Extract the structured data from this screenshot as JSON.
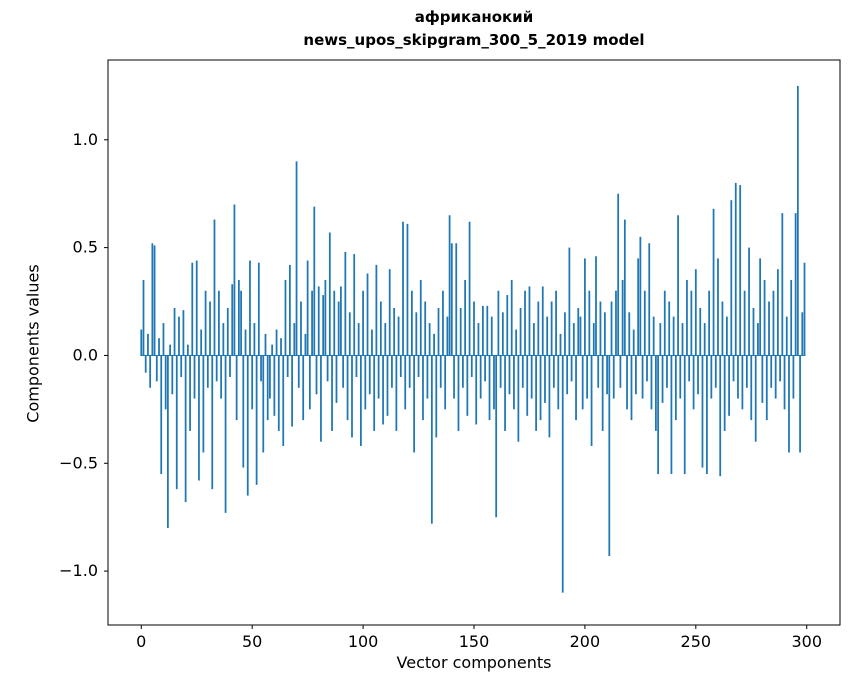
{
  "figure": {
    "title_line1": "африканокий",
    "title_line2": "news_upos_skipgram_300_5_2019 model",
    "xlabel": "Vector components",
    "ylabel": "Components values",
    "bar_color": "#1f77b4",
    "background": "#ffffff",
    "axis_color": "#000000"
  },
  "chart_data": {
    "type": "bar",
    "title": "африканокий — news_upos_skipgram_300_5_2019 model",
    "xlabel": "Vector components",
    "ylabel": "Components values",
    "legend": null,
    "grid": false,
    "xlim": [
      -15,
      315
    ],
    "ylim": [
      -1.25,
      1.37
    ],
    "xticks": [
      0,
      50,
      100,
      150,
      200,
      250,
      300
    ],
    "xtick_labels": [
      "0",
      "50",
      "100",
      "150",
      "200",
      "250",
      "300"
    ],
    "yticks": [
      -1.0,
      -0.5,
      0.0,
      0.5,
      1.0
    ],
    "ytick_labels": [
      "−1.0",
      "−0.5",
      "0.0",
      "0.5",
      "1.0"
    ],
    "x_start": 0,
    "bar_width_units": 0.8,
    "values": [
      0.12,
      0.35,
      -0.08,
      0.1,
      -0.15,
      0.52,
      0.51,
      -0.12,
      0.08,
      -0.55,
      0.15,
      -0.25,
      -0.8,
      0.05,
      -0.18,
      0.22,
      -0.62,
      0.18,
      -0.1,
      0.21,
      -0.68,
      0.05,
      -0.35,
      0.43,
      -0.2,
      0.44,
      -0.58,
      0.12,
      -0.45,
      0.3,
      -0.15,
      0.25,
      -0.62,
      0.63,
      -0.12,
      0.3,
      -0.2,
      0.15,
      -0.73,
      0.22,
      -0.1,
      0.33,
      0.7,
      -0.3,
      0.35,
      0.3,
      -0.52,
      0.12,
      -0.65,
      0.44,
      -0.25,
      0.15,
      -0.6,
      0.43,
      -0.12,
      -0.45,
      0.1,
      -0.3,
      -0.2,
      0.05,
      -0.28,
      0.12,
      -0.35,
      0.08,
      -0.42,
      0.35,
      -0.1,
      0.42,
      -0.33,
      0.15,
      0.9,
      -0.15,
      0.25,
      -0.3,
      0.1,
      0.44,
      -0.25,
      0.3,
      0.69,
      -0.18,
      0.32,
      -0.4,
      0.28,
      0.35,
      -0.12,
      0.57,
      -0.35,
      0.3,
      -0.22,
      0.25,
      0.32,
      -0.15,
      0.48,
      -0.3,
      0.2,
      -0.38,
      0.47,
      -0.1,
      0.15,
      -0.42,
      0.3,
      -0.25,
      0.38,
      -0.18,
      0.12,
      -0.35,
      0.42,
      -0.2,
      0.25,
      -0.32,
      0.15,
      -0.28,
      0.4,
      -0.15,
      0.22,
      -0.35,
      0.18,
      -0.1,
      0.62,
      -0.25,
      0.61,
      -0.15,
      0.3,
      -0.45,
      0.2,
      -0.1,
      0.35,
      -0.3,
      0.25,
      -0.2,
      0.15,
      -0.78,
      0.1,
      -0.38,
      0.22,
      -0.15,
      0.3,
      -0.25,
      0.18,
      0.65,
      0.52,
      -0.2,
      0.52,
      -0.35,
      0.22,
      -0.15,
      0.35,
      -0.28,
      0.62,
      -0.1,
      0.25,
      -0.32,
      0.15,
      -0.2,
      0.23,
      -0.12,
      0.23,
      -0.3,
      0.18,
      -0.25,
      -0.75,
      0.3,
      -0.15,
      0.2,
      -0.35,
      0.28,
      -0.18,
      0.35,
      -0.25,
      0.12,
      -0.4,
      0.22,
      -0.15,
      0.3,
      -0.28,
      0.32,
      -0.2,
      0.15,
      -0.35,
      0.25,
      -0.3,
      0.32,
      -0.22,
      0.18,
      -0.38,
      0.25,
      -0.15,
      0.3,
      -0.25,
      0.1,
      -1.1,
      0.2,
      -0.18,
      0.5,
      -0.12,
      0.15,
      -0.3,
      0.22,
      0.18,
      -0.25,
      0.45,
      -0.2,
      0.3,
      -0.42,
      0.15,
      0.46,
      -0.15,
      0.25,
      -0.35,
      0.2,
      -0.18,
      -0.93,
      0.25,
      -0.2,
      0.3,
      0.75,
      -0.15,
      0.35,
      0.63,
      -0.25,
      0.2,
      -0.3,
      0.12,
      -0.18,
      0.45,
      0.55,
      -0.2,
      0.3,
      -0.12,
      0.52,
      -0.25,
      0.18,
      -0.35,
      -0.55,
      0.15,
      -0.22,
      0.3,
      -0.15,
      0.25,
      -0.55,
      0.18,
      -0.3,
      0.65,
      -0.2,
      0.15,
      -0.55,
      0.35,
      -0.12,
      0.3,
      -0.25,
      0.4,
      -0.18,
      0.22,
      -0.52,
      0.15,
      -0.55,
      0.3,
      -0.2,
      0.68,
      -0.15,
      0.45,
      -0.56,
      0.25,
      -0.35,
      0.18,
      -0.28,
      0.72,
      -0.12,
      0.8,
      -0.2,
      0.79,
      -0.25,
      0.3,
      -0.15,
      0.5,
      -0.3,
      0.22,
      -0.4,
      0.15,
      0.45,
      -0.22,
      0.35,
      -0.3,
      0.25,
      -0.15,
      0.3,
      -0.2,
      0.4,
      -0.12,
      0.66,
      -0.25,
      0.18,
      -0.45,
      0.35,
      -0.2,
      0.66,
      1.25,
      -0.45,
      0.2,
      0.43
    ]
  }
}
